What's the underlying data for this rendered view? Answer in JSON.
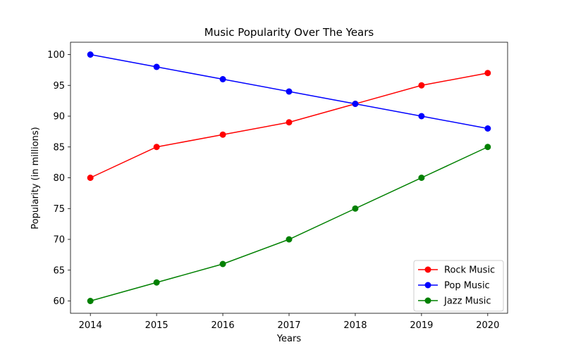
{
  "chart_data": {
    "type": "line",
    "title": "Music Popularity Over The Years",
    "xlabel": "Years",
    "ylabel": "Popularity (in millions)",
    "x": [
      2014,
      2015,
      2016,
      2017,
      2018,
      2019,
      2020
    ],
    "xlim": [
      2013.7,
      2020.3
    ],
    "ylim": [
      58,
      102
    ],
    "yticks": [
      60,
      65,
      70,
      75,
      80,
      85,
      90,
      95,
      100
    ],
    "grid": false,
    "legend_position": "lower-right",
    "series": [
      {
        "name": "Rock Music",
        "color": "#ff0000",
        "values": [
          80,
          85,
          87,
          89,
          92,
          95,
          97
        ]
      },
      {
        "name": "Pop Music",
        "color": "#0000ff",
        "values": [
          100,
          98,
          96,
          94,
          92,
          90,
          88
        ]
      },
      {
        "name": "Jazz Music",
        "color": "#008000",
        "values": [
          60,
          63,
          66,
          70,
          75,
          80,
          85
        ]
      }
    ]
  }
}
